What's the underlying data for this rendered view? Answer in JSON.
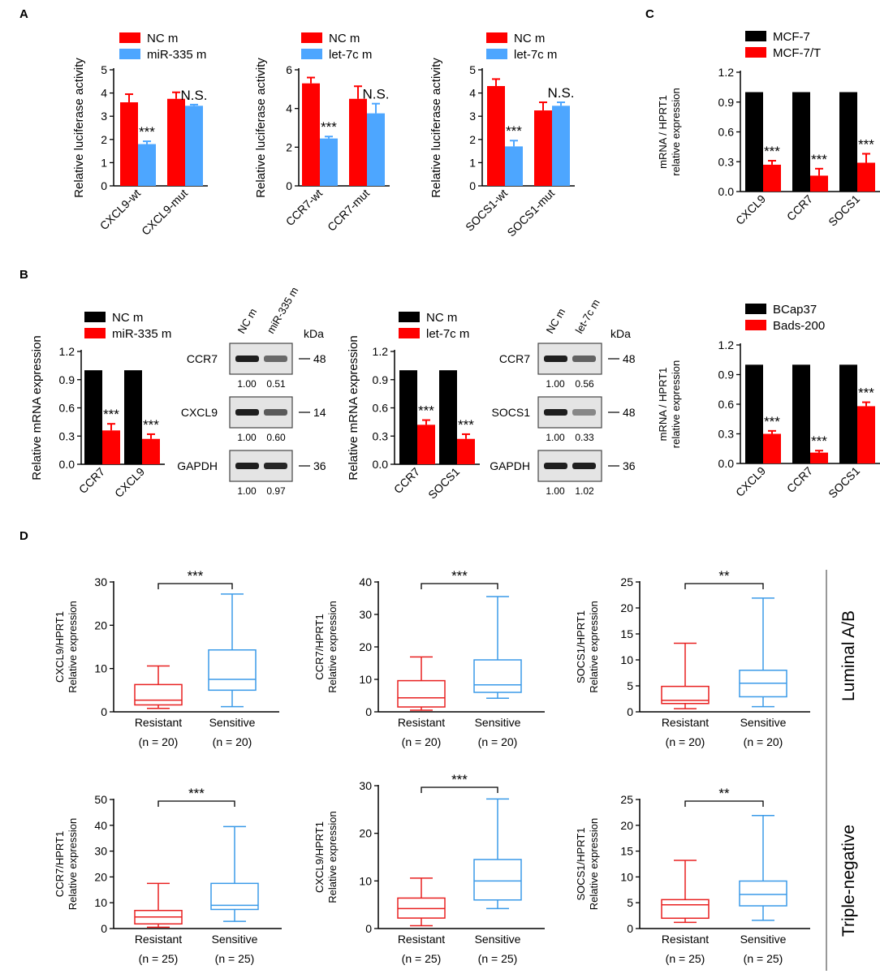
{
  "colors": {
    "red": "#ff0000",
    "blue": "#4da6ff",
    "black": "#000000",
    "gray": "#555555",
    "boxRed": "#e82020",
    "boxBlue": "#3a9ae8"
  },
  "panel_labels": [
    "A",
    "B",
    "C",
    "D"
  ],
  "chart_data": [
    {
      "id": "A1",
      "type": "bar",
      "ylabel": "Relative luciferase activity",
      "ylim": [
        0,
        5
      ],
      "yticks": [
        0,
        1,
        2,
        3,
        4,
        5
      ],
      "categories": [
        "CXCL9-wt",
        "CXCL9-mut"
      ],
      "series": [
        {
          "name": "NC m",
          "color": "red",
          "values": [
            3.6,
            3.75
          ],
          "errors": [
            0.35,
            0.28
          ]
        },
        {
          "name": "miR-335 m",
          "color": "blue",
          "values": [
            1.8,
            3.45
          ],
          "errors": [
            0.12,
            0.05
          ]
        }
      ],
      "annotations": [
        "***",
        "N.S."
      ]
    },
    {
      "id": "A2",
      "type": "bar",
      "ylabel": "Relative luciferase activity",
      "ylim": [
        0,
        6
      ],
      "yticks": [
        0,
        2,
        4,
        6
      ],
      "categories": [
        "CCR7-wt",
        "CCR7-mut"
      ],
      "series": [
        {
          "name": "NC m",
          "color": "red",
          "values": [
            5.3,
            4.5
          ],
          "errors": [
            0.3,
            0.65
          ]
        },
        {
          "name": "let-7c m",
          "color": "blue",
          "values": [
            2.45,
            3.75
          ],
          "errors": [
            0.1,
            0.5
          ]
        }
      ],
      "annotations": [
        "***",
        "N.S."
      ]
    },
    {
      "id": "A3",
      "type": "bar",
      "ylabel": "Relative luciferase activity",
      "ylim": [
        0,
        5
      ],
      "yticks": [
        0,
        1,
        2,
        3,
        4,
        5
      ],
      "categories": [
        "SOCS1-wt",
        "SOCS1-mut"
      ],
      "series": [
        {
          "name": "NC m",
          "color": "red",
          "values": [
            4.3,
            3.25
          ],
          "errors": [
            0.3,
            0.35
          ]
        },
        {
          "name": "let-7c m",
          "color": "blue",
          "values": [
            1.7,
            3.45
          ],
          "errors": [
            0.25,
            0.15
          ]
        }
      ],
      "annotations": [
        "***",
        "N.S."
      ]
    },
    {
      "id": "C1",
      "type": "bar",
      "ylabel": [
        "mRNA / HPRT1",
        "relative expression"
      ],
      "ylim": [
        0,
        1.2
      ],
      "yticks": [
        "0.0",
        "0.3",
        "0.6",
        "0.9",
        "1.2"
      ],
      "categories": [
        "CXCL9",
        "CCR7",
        "SOCS1"
      ],
      "series": [
        {
          "name": "MCF-7",
          "color": "black",
          "values": [
            1.0,
            1.0,
            1.0
          ],
          "errors": [
            0,
            0,
            0
          ]
        },
        {
          "name": "MCF-7/T",
          "color": "red",
          "values": [
            0.27,
            0.16,
            0.29
          ],
          "errors": [
            0.04,
            0.07,
            0.09
          ]
        }
      ],
      "annotations": [
        "***",
        "***",
        "***"
      ]
    },
    {
      "id": "B1",
      "type": "bar",
      "ylabel": "Relative mRNA expression",
      "ylim": [
        0,
        1.2
      ],
      "yticks": [
        "0.0",
        "0.3",
        "0.6",
        "0.9",
        "1.2"
      ],
      "categories": [
        "CCR7",
        "CXCL9"
      ],
      "series": [
        {
          "name": "NC m",
          "color": "black",
          "values": [
            1.0,
            1.0
          ],
          "errors": [
            0,
            0
          ]
        },
        {
          "name": "miR-335 m",
          "color": "red",
          "values": [
            0.36,
            0.27
          ],
          "errors": [
            0.07,
            0.05
          ]
        }
      ],
      "annotations": [
        "***",
        "***"
      ]
    },
    {
      "id": "B2",
      "type": "bar",
      "ylabel": "Relative mRNA expression",
      "ylim": [
        0,
        1.2
      ],
      "yticks": [
        "0.0",
        "0.3",
        "0.6",
        "0.9",
        "1.2"
      ],
      "categories": [
        "CCR7",
        "SOCS1"
      ],
      "series": [
        {
          "name": "NC m",
          "color": "black",
          "values": [
            1.0,
            1.0
          ],
          "errors": [
            0,
            0
          ]
        },
        {
          "name": "let-7c m",
          "color": "red",
          "values": [
            0.42,
            0.27
          ],
          "errors": [
            0.05,
            0.05
          ]
        }
      ],
      "annotations": [
        "***",
        "***"
      ]
    },
    {
      "id": "C2",
      "type": "bar",
      "ylabel": [
        "mRNA / HPRT1",
        "relative expression"
      ],
      "ylim": [
        0,
        1.2
      ],
      "yticks": [
        "0.0",
        "0.3",
        "0.6",
        "0.9",
        "1.2"
      ],
      "categories": [
        "CXCL9",
        "CCR7",
        "SOCS1"
      ],
      "series": [
        {
          "name": "BCap37",
          "color": "black",
          "values": [
            1.0,
            1.0,
            1.0
          ],
          "errors": [
            0,
            0,
            0
          ]
        },
        {
          "name": "Bads-200",
          "color": "red",
          "values": [
            0.3,
            0.11,
            0.58
          ],
          "errors": [
            0.03,
            0.02,
            0.04
          ]
        }
      ],
      "annotations": [
        "***",
        "***",
        "***"
      ]
    },
    {
      "id": "D1",
      "type": "box",
      "ylabel": [
        "CXCL9/HPRT1",
        "Relative expression"
      ],
      "ylim": [
        0,
        30
      ],
      "yticks": [
        0,
        10,
        20,
        30
      ],
      "significance": "***",
      "groups": [
        {
          "name": "Resistant",
          "n": "(n = 20)",
          "color": "boxRed",
          "min": 0.8,
          "q1": 1.6,
          "median": 2.7,
          "q3": 6.3,
          "max": 10.6
        },
        {
          "name": "Sensitive",
          "n": "(n = 20)",
          "color": "boxBlue",
          "min": 1.2,
          "q1": 5.0,
          "median": 7.5,
          "q3": 14.3,
          "max": 27.2
        }
      ]
    },
    {
      "id": "D2",
      "type": "box",
      "ylabel": [
        "CCR7/HPRT1",
        "Relative expression"
      ],
      "ylim": [
        0,
        40
      ],
      "yticks": [
        0,
        10,
        20,
        30,
        40
      ],
      "significance": "***",
      "groups": [
        {
          "name": "Resistant",
          "n": "(n = 20)",
          "color": "boxRed",
          "min": 0.5,
          "q1": 1.5,
          "median": 4.3,
          "q3": 9.6,
          "max": 16.9
        },
        {
          "name": "Sensitive",
          "n": "(n = 20)",
          "color": "boxBlue",
          "min": 4.2,
          "q1": 6.0,
          "median": 8.3,
          "q3": 16.0,
          "max": 35.5
        }
      ]
    },
    {
      "id": "D3",
      "type": "box",
      "ylabel": [
        "SOCS1/HPRT1",
        "Relative expression"
      ],
      "ylim": [
        0,
        25
      ],
      "yticks": [
        0,
        5,
        10,
        15,
        20,
        25
      ],
      "significance": "**",
      "groups": [
        {
          "name": "Resistant",
          "n": "(n = 20)",
          "color": "boxRed",
          "min": 0.6,
          "q1": 1.6,
          "median": 2.2,
          "q3": 4.9,
          "max": 13.2
        },
        {
          "name": "Sensitive",
          "n": "(n = 20)",
          "color": "boxBlue",
          "min": 1.0,
          "q1": 2.9,
          "median": 5.5,
          "q3": 8.0,
          "max": 21.9
        }
      ]
    },
    {
      "id": "D4",
      "type": "box",
      "ylabel": [
        "CCR7/HPRT1",
        "Relative expression"
      ],
      "ylim": [
        0,
        50
      ],
      "yticks": [
        0,
        10,
        20,
        30,
        40,
        50
      ],
      "significance": "***",
      "groups": [
        {
          "name": "Resistant",
          "n": "(n = 25)",
          "color": "boxRed",
          "min": 0.5,
          "q1": 1.8,
          "median": 4.5,
          "q3": 7.0,
          "max": 17.5
        },
        {
          "name": "Sensitive",
          "n": "(n = 25)",
          "color": "boxBlue",
          "min": 2.8,
          "q1": 7.4,
          "median": 9.0,
          "q3": 17.5,
          "max": 39.5
        }
      ]
    },
    {
      "id": "D5",
      "type": "box",
      "ylabel": [
        "CXCL9/HPRT1",
        "Relative expression"
      ],
      "ylim": [
        0,
        30
      ],
      "yticks": [
        0,
        10,
        20,
        30
      ],
      "significance": "***",
      "groups": [
        {
          "name": "Resistant",
          "n": "(n = 25)",
          "color": "boxRed",
          "min": 0.6,
          "q1": 2.2,
          "median": 4.2,
          "q3": 6.4,
          "max": 10.6
        },
        {
          "name": "Sensitive",
          "n": "(n = 25)",
          "color": "boxBlue",
          "min": 4.2,
          "q1": 6.0,
          "median": 10.0,
          "q3": 14.5,
          "max": 27.2
        }
      ]
    },
    {
      "id": "D6",
      "type": "box",
      "ylabel": [
        "SOCS1/HPRT1",
        "Relative expression"
      ],
      "ylim": [
        0,
        25
      ],
      "yticks": [
        0,
        5,
        10,
        15,
        20,
        25
      ],
      "significance": "**",
      "groups": [
        {
          "name": "Resistant",
          "n": "(n = 25)",
          "color": "boxRed",
          "min": 1.2,
          "q1": 2.0,
          "median": 4.6,
          "q3": 5.6,
          "max": 13.2
        },
        {
          "name": "Sensitive",
          "n": "(n = 25)",
          "color": "boxBlue",
          "min": 1.6,
          "q1": 4.4,
          "median": 6.6,
          "q3": 9.2,
          "max": 21.9
        }
      ]
    }
  ],
  "blots": [
    {
      "id": "blot1",
      "lanes": [
        "NC m",
        "miR-335 m"
      ],
      "kda_label": "kDa",
      "rows": [
        {
          "protein": "CCR7",
          "kda": "48",
          "values": [
            "1.00",
            "0.51"
          ],
          "intensity": [
            1.0,
            0.5
          ]
        },
        {
          "protein": "CXCL9",
          "kda": "14",
          "values": [
            "1.00",
            "0.60"
          ],
          "intensity": [
            1.0,
            0.6
          ]
        },
        {
          "protein": "GAPDH",
          "kda": "36",
          "values": [
            "1.00",
            "0.97"
          ],
          "intensity": [
            1.0,
            0.95
          ]
        }
      ]
    },
    {
      "id": "blot2",
      "lanes": [
        "NC m",
        "let-7c m"
      ],
      "kda_label": "kDa",
      "rows": [
        {
          "protein": "CCR7",
          "kda": "48",
          "values": [
            "1.00",
            "0.56"
          ],
          "intensity": [
            1.0,
            0.55
          ]
        },
        {
          "protein": "SOCS1",
          "kda": "48",
          "values": [
            "1.00",
            "0.33"
          ],
          "intensity": [
            1.0,
            0.3
          ]
        },
        {
          "protein": "GAPDH",
          "kda": "36",
          "values": [
            "1.00",
            "1.02"
          ],
          "intensity": [
            1.0,
            1.0
          ]
        }
      ]
    }
  ],
  "side_labels": [
    "Luminal A/B",
    "Triple-negative"
  ]
}
